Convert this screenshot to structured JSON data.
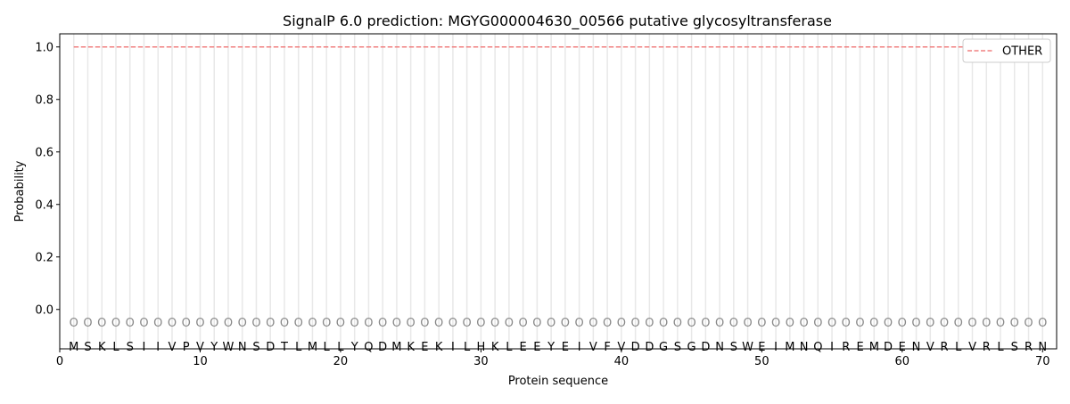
{
  "chart_data": {
    "type": "line",
    "title": "SignalP 6.0 prediction: MGYG000004630_00566 putative glycosyltransferase",
    "xlabel": "Protein sequence",
    "ylabel": "Probability",
    "xlim": [
      0,
      71
    ],
    "ylim": [
      -0.15,
      1.05
    ],
    "xticks": [
      0,
      10,
      20,
      30,
      40,
      50,
      60,
      70
    ],
    "yticks": [
      0.0,
      0.2,
      0.4,
      0.6,
      0.8,
      1.0
    ],
    "ytick_labels": [
      "0.0",
      "0.2",
      "0.4",
      "0.6",
      "0.8",
      "1.0"
    ],
    "sequence": "MSKLSIIVPVYWNSDTLMLLYQDMKEKILHKLEEYEIVFVDDGSGDNSWEIMNQIREMDENVRLVRLSRN",
    "predicted_label": "O",
    "grid": "vertical lines at each residue",
    "legend_position": "top-right",
    "series": [
      {
        "name": "OTHER",
        "color": "#f08080",
        "style": "dashed",
        "x_start": 1,
        "x_end": 70,
        "value": 1.0
      }
    ]
  }
}
